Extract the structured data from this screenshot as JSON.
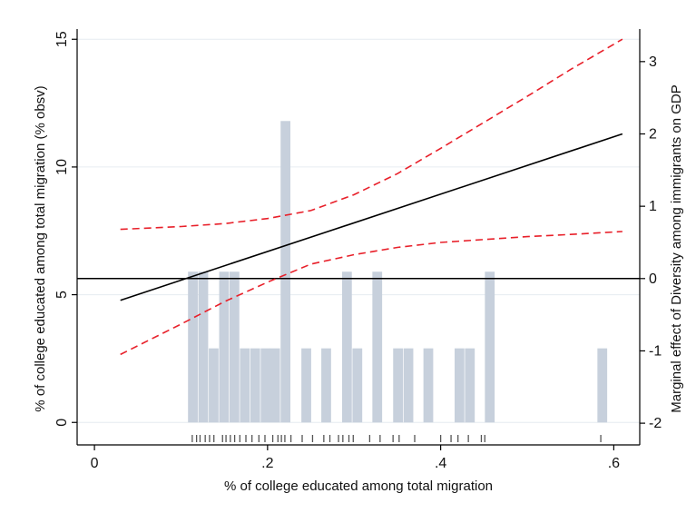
{
  "chart_data": {
    "type": "bar",
    "xlabel": "% of college educated among total migration",
    "ylabel_left": "% of college educated among total migration (% obsv)",
    "ylabel_right": "Marginal effect of Diversity among immigrants on GDP",
    "xlim": [
      -0.02,
      0.63
    ],
    "ylim_left": [
      -0.88,
      15.4
    ],
    "ylim_right": [
      -2.3,
      3.45
    ],
    "x_ticks": [
      "0",
      ".2",
      ".4",
      ".6"
    ],
    "x_tick_values": [
      0,
      0.2,
      0.4,
      0.6
    ],
    "y_left_ticks": [
      "0",
      "5",
      "10",
      "15"
    ],
    "y_left_tick_values": [
      0,
      5,
      10,
      15
    ],
    "y_right_ticks": [
      "-2",
      "-1",
      "0",
      "1",
      "2",
      "3"
    ],
    "y_right_tick_values": [
      -2,
      -1,
      0,
      1,
      2,
      3
    ],
    "grid": true,
    "histogram": {
      "bar_width": 0.0118,
      "bars": [
        {
          "x": 0.114,
          "height": 5.9
        },
        {
          "x": 0.126,
          "height": 5.9
        },
        {
          "x": 0.138,
          "height": 2.9
        },
        {
          "x": 0.15,
          "height": 5.9
        },
        {
          "x": 0.162,
          "height": 5.9
        },
        {
          "x": 0.174,
          "height": 2.9
        },
        {
          "x": 0.186,
          "height": 2.9
        },
        {
          "x": 0.198,
          "height": 2.9
        },
        {
          "x": 0.209,
          "height": 2.9
        },
        {
          "x": 0.221,
          "height": 11.8
        },
        {
          "x": 0.233,
          "height": 0
        },
        {
          "x": 0.245,
          "height": 2.9
        },
        {
          "x": 0.257,
          "height": 0
        },
        {
          "x": 0.268,
          "height": 2.9
        },
        {
          "x": 0.28,
          "height": 0
        },
        {
          "x": 0.292,
          "height": 5.9
        },
        {
          "x": 0.304,
          "height": 2.9
        },
        {
          "x": 0.316,
          "height": 0
        },
        {
          "x": 0.327,
          "height": 5.9
        },
        {
          "x": 0.351,
          "height": 2.9
        },
        {
          "x": 0.363,
          "height": 2.9
        },
        {
          "x": 0.375,
          "height": 0
        },
        {
          "x": 0.386,
          "height": 2.9
        },
        {
          "x": 0.41,
          "height": 0
        },
        {
          "x": 0.422,
          "height": 2.9
        },
        {
          "x": 0.434,
          "height": 2.9
        },
        {
          "x": 0.445,
          "height": 0
        },
        {
          "x": 0.457,
          "height": 5.9
        },
        {
          "x": 0.587,
          "height": 2.9
        }
      ],
      "color": "#c7d0dc"
    },
    "marginal_effect": {
      "x": [
        0.03,
        0.61
      ],
      "y": [
        -0.3,
        2.0
      ],
      "color": "#000000"
    },
    "ci_upper": {
      "x": [
        0.03,
        0.1,
        0.15,
        0.2,
        0.25,
        0.3,
        0.35,
        0.4,
        0.45,
        0.5,
        0.55,
        0.61
      ],
      "y": [
        0.68,
        0.72,
        0.76,
        0.83,
        0.94,
        1.16,
        1.45,
        1.8,
        2.16,
        2.52,
        2.89,
        3.31
      ],
      "color": "#e8202a"
    },
    "ci_lower": {
      "x": [
        0.03,
        0.1,
        0.15,
        0.2,
        0.25,
        0.3,
        0.35,
        0.4,
        0.45,
        0.5,
        0.55,
        0.61
      ],
      "y": [
        -1.05,
        -0.63,
        -0.32,
        -0.05,
        0.2,
        0.33,
        0.43,
        0.5,
        0.54,
        0.58,
        0.61,
        0.65
      ],
      "color": "#e8202a"
    },
    "zero_line": {
      "y": 0,
      "color": "#000000"
    },
    "rug_x": [
      0.113,
      0.118,
      0.122,
      0.128,
      0.133,
      0.138,
      0.148,
      0.152,
      0.157,
      0.162,
      0.168,
      0.175,
      0.182,
      0.19,
      0.197,
      0.206,
      0.212,
      0.216,
      0.22,
      0.227,
      0.24,
      0.252,
      0.265,
      0.272,
      0.282,
      0.287,
      0.294,
      0.299,
      0.318,
      0.33,
      0.345,
      0.352,
      0.37,
      0.4,
      0.412,
      0.42,
      0.432,
      0.447,
      0.451,
      0.585
    ]
  }
}
